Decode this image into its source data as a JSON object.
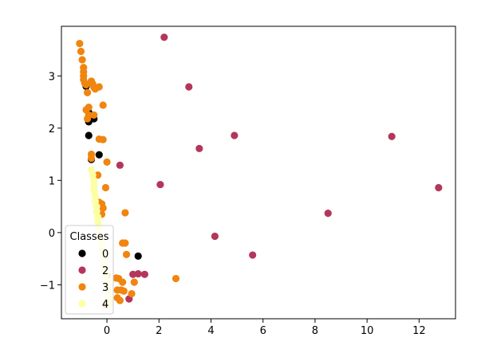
{
  "chart_data": {
    "type": "scatter",
    "title": "",
    "xlabel": "",
    "ylabel": "",
    "xlim": [
      -1.75,
      13.4
    ],
    "ylim": [
      -1.65,
      3.95
    ],
    "xticks": [
      0,
      2,
      4,
      6,
      8,
      10,
      12
    ],
    "yticks": [
      -1,
      0,
      1,
      2,
      3
    ],
    "grid": false,
    "legend": {
      "title": "Classes",
      "position": "lower-left"
    },
    "series": [
      {
        "name": "0",
        "color": "#000000",
        "points": [
          [
            -0.8,
            2.8
          ],
          [
            -0.7,
            2.12
          ],
          [
            -0.5,
            2.18
          ],
          [
            -0.7,
            1.86
          ],
          [
            -0.3,
            1.49
          ],
          [
            -0.6,
            1.4
          ],
          [
            1.2,
            -0.45
          ],
          [
            -0.7,
            2.3
          ]
        ]
      },
      {
        "name": "2",
        "color": "#b5365b",
        "points": [
          [
            2.2,
            3.74
          ],
          [
            3.15,
            2.79
          ],
          [
            4.9,
            1.86
          ],
          [
            3.55,
            1.61
          ],
          [
            10.95,
            1.84
          ],
          [
            0.5,
            1.29
          ],
          [
            2.05,
            0.92
          ],
          [
            12.75,
            0.86
          ],
          [
            8.5,
            0.37
          ],
          [
            4.15,
            -0.07
          ],
          [
            5.6,
            -0.43
          ],
          [
            1.2,
            -0.79
          ],
          [
            1.45,
            -0.8
          ],
          [
            1.0,
            -0.8
          ],
          [
            0.85,
            -1.27
          ]
        ]
      },
      {
        "name": "3",
        "color": "#f0850f",
        "points": [
          [
            -1.05,
            3.62
          ],
          [
            -1.0,
            3.47
          ],
          [
            -0.95,
            3.31
          ],
          [
            -0.9,
            3.16
          ],
          [
            -0.9,
            3.08
          ],
          [
            -0.9,
            3.0
          ],
          [
            -0.9,
            2.93
          ],
          [
            -0.85,
            2.86
          ],
          [
            -0.8,
            2.83
          ],
          [
            -0.6,
            2.9
          ],
          [
            -0.55,
            2.85
          ],
          [
            -0.5,
            2.78
          ],
          [
            -0.45,
            2.75
          ],
          [
            -0.3,
            2.79
          ],
          [
            -0.75,
            2.68
          ],
          [
            -0.7,
            2.4
          ],
          [
            -0.8,
            2.35
          ],
          [
            -0.7,
            2.25
          ],
          [
            -0.75,
            2.18
          ],
          [
            -0.15,
            2.44
          ],
          [
            -0.5,
            2.25
          ],
          [
            -0.3,
            1.79
          ],
          [
            -0.15,
            1.78
          ],
          [
            -0.6,
            1.5
          ],
          [
            -0.6,
            1.42
          ],
          [
            0.0,
            1.35
          ],
          [
            -0.35,
            1.1
          ],
          [
            -0.05,
            0.86
          ],
          [
            -0.3,
            0.58
          ],
          [
            -0.2,
            0.55
          ],
          [
            -0.15,
            0.47
          ],
          [
            -0.2,
            0.35
          ],
          [
            0.7,
            0.38
          ],
          [
            0.6,
            -0.2
          ],
          [
            0.7,
            -0.2
          ],
          [
            0.75,
            -0.42
          ],
          [
            -0.15,
            -0.35
          ],
          [
            0.0,
            -0.82
          ],
          [
            0.35,
            -0.87
          ],
          [
            0.45,
            -0.88
          ],
          [
            0.6,
            -0.95
          ],
          [
            1.05,
            -0.95
          ],
          [
            2.65,
            -0.88
          ],
          [
            0.4,
            -1.1
          ],
          [
            0.55,
            -1.1
          ],
          [
            0.65,
            -1.12
          ],
          [
            0.95,
            -1.17
          ],
          [
            0.4,
            -1.25
          ],
          [
            0.5,
            -1.3
          ],
          [
            0.0,
            -1.35
          ],
          [
            -0.05,
            -1.38
          ]
        ]
      },
      {
        "name": "4",
        "color": "#fcffa4",
        "points": [
          [
            -0.6,
            1.2
          ],
          [
            -0.55,
            1.1
          ],
          [
            -0.5,
            1.0
          ],
          [
            -0.5,
            0.9
          ],
          [
            -0.5,
            0.8
          ],
          [
            -0.45,
            0.7
          ],
          [
            -0.45,
            0.6
          ],
          [
            -0.4,
            0.5
          ],
          [
            -0.4,
            0.4
          ],
          [
            -0.35,
            0.3
          ],
          [
            -0.35,
            0.2
          ],
          [
            -0.3,
            0.1
          ],
          [
            -0.3,
            0.0
          ],
          [
            -0.25,
            -0.1
          ],
          [
            -0.2,
            -0.2
          ],
          [
            -0.2,
            -0.3
          ],
          [
            -0.15,
            -0.4
          ],
          [
            -0.15,
            -0.5
          ],
          [
            -0.1,
            -0.6
          ],
          [
            -0.1,
            -0.7
          ],
          [
            -0.05,
            -0.8
          ],
          [
            -0.05,
            -0.9
          ],
          [
            0.0,
            -1.0
          ],
          [
            0.0,
            -1.1
          ],
          [
            0.05,
            -1.2
          ],
          [
            0.1,
            -1.3
          ],
          [
            0.1,
            -1.4
          ]
        ]
      }
    ]
  }
}
